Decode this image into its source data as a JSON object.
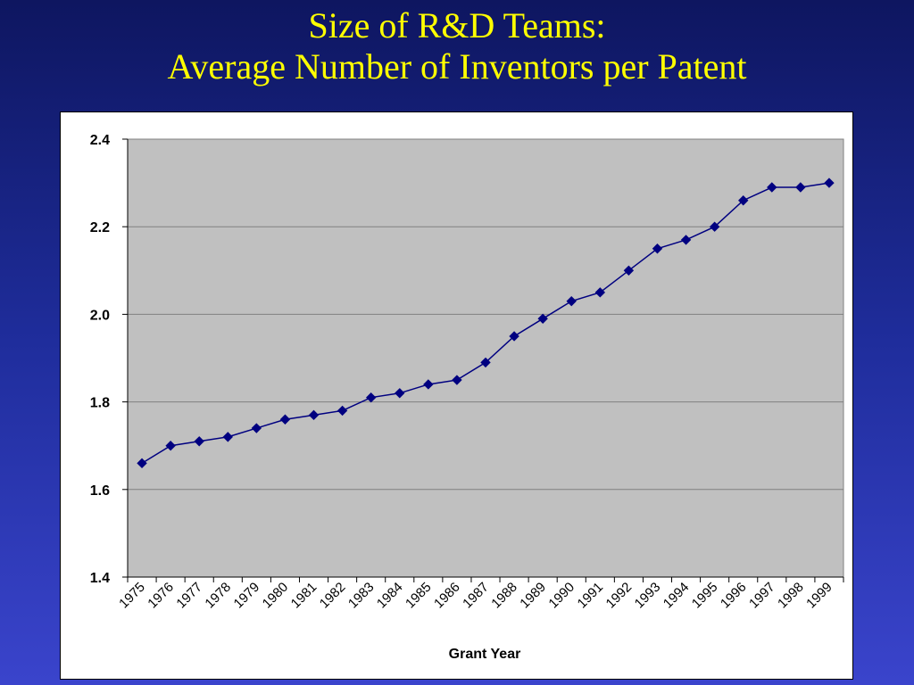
{
  "slide": {
    "title_line1": "Size of R&D Teams:",
    "title_line2": "Average Number of Inventors per Patent"
  },
  "colors": {
    "title": "#ffff00",
    "plot_background": "#c0c0c0",
    "series": "#000080",
    "gridline": "#808080"
  },
  "chart_data": {
    "type": "line",
    "title": "",
    "xlabel": "Grant Year",
    "ylabel": "",
    "ylim": [
      1.4,
      2.4
    ],
    "yticks": [
      "1.4",
      "1.6",
      "1.8",
      "2.0",
      "2.2",
      "2.4"
    ],
    "grid": true,
    "legend": "none",
    "marker": "diamond",
    "categories": [
      "1975",
      "1976",
      "1977",
      "1978",
      "1979",
      "1980",
      "1981",
      "1982",
      "1983",
      "1984",
      "1985",
      "1986",
      "1987",
      "1988",
      "1989",
      "1990",
      "1991",
      "1992",
      "1993",
      "1994",
      "1995",
      "1996",
      "1997",
      "1998",
      "1999"
    ],
    "series": [
      {
        "values": [
          1.66,
          1.7,
          1.71,
          1.72,
          1.74,
          1.76,
          1.77,
          1.78,
          1.81,
          1.82,
          1.84,
          1.85,
          1.89,
          1.95,
          1.99,
          2.03,
          2.05,
          2.1,
          2.15,
          2.17,
          2.2,
          2.26,
          2.29,
          2.29,
          2.3
        ]
      }
    ]
  }
}
